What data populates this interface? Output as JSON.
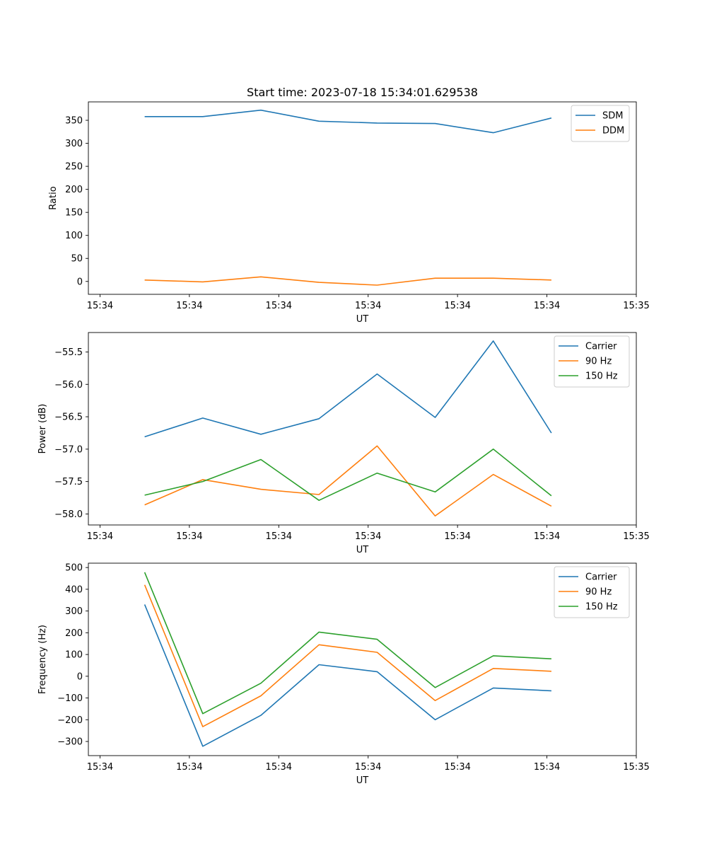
{
  "colors": {
    "blue": "#1f77b4",
    "orange": "#ff7f0e",
    "green": "#2ca02c"
  },
  "chart_data": [
    {
      "type": "line",
      "title": "Start time: 2023-07-18 15:34:01.629538",
      "xlabel": "UT",
      "ylabel": "Ratio",
      "x": [
        0.5,
        1.15,
        1.8,
        2.45,
        3.1,
        3.75,
        4.4,
        5.05
      ],
      "xlim": [
        -0.13,
        6.0
      ],
      "x_ticks": [
        0,
        1,
        2,
        3,
        4,
        5,
        6
      ],
      "x_tick_labels": [
        "15:34",
        "15:34",
        "15:34",
        "15:34",
        "15:34",
        "15:34",
        "15:35"
      ],
      "ylim": [
        -28,
        390
      ],
      "y_ticks": [
        0,
        50,
        100,
        150,
        200,
        250,
        300,
        350
      ],
      "y_tick_labels": [
        "0",
        "50",
        "100",
        "150",
        "200",
        "250",
        "300",
        "350"
      ],
      "legend_position": "top-right",
      "series": [
        {
          "name": "SDM",
          "color": "#1f77b4",
          "values": [
            358,
            358,
            372,
            348,
            344,
            343,
            323,
            355
          ]
        },
        {
          "name": "DDM",
          "color": "#ff7f0e",
          "values": [
            3,
            -1,
            10,
            -2,
            -8,
            7,
            7,
            3
          ]
        }
      ]
    },
    {
      "type": "line",
      "title": "",
      "xlabel": "UT",
      "ylabel": "Power (dB)",
      "x": [
        0.5,
        1.15,
        1.8,
        2.45,
        3.1,
        3.75,
        4.4,
        5.05
      ],
      "xlim": [
        -0.13,
        6.0
      ],
      "x_ticks": [
        0,
        1,
        2,
        3,
        4,
        5,
        6
      ],
      "x_tick_labels": [
        "15:34",
        "15:34",
        "15:34",
        "15:34",
        "15:34",
        "15:34",
        "15:35"
      ],
      "ylim": [
        -58.17,
        -55.2
      ],
      "y_ticks": [
        -58.0,
        -57.5,
        -57.0,
        -56.5,
        -56.0,
        -55.5
      ],
      "y_tick_labels": [
        "−58.0",
        "−57.5",
        "−57.0",
        "−56.5",
        "−56.0",
        "−55.5"
      ],
      "legend_position": "top-right",
      "series": [
        {
          "name": "Carrier",
          "color": "#1f77b4",
          "values": [
            -56.81,
            -56.52,
            -56.77,
            -56.53,
            -55.84,
            -56.51,
            -55.33,
            -56.75
          ]
        },
        {
          "name": "90 Hz",
          "color": "#ff7f0e",
          "values": [
            -57.86,
            -57.47,
            -57.62,
            -57.7,
            -56.95,
            -58.03,
            -57.39,
            -57.88
          ]
        },
        {
          "name": "150 Hz",
          "color": "#2ca02c",
          "values": [
            -57.71,
            -57.5,
            -57.16,
            -57.79,
            -57.37,
            -57.66,
            -57.0,
            -57.72
          ]
        }
      ]
    },
    {
      "type": "line",
      "title": "",
      "xlabel": "UT",
      "ylabel": "Frequency (Hz)",
      "x": [
        0.5,
        1.15,
        1.8,
        2.45,
        3.1,
        3.75,
        4.4,
        5.05
      ],
      "xlim": [
        -0.13,
        6.0
      ],
      "x_ticks": [
        0,
        1,
        2,
        3,
        4,
        5,
        6
      ],
      "x_tick_labels": [
        "15:34",
        "15:34",
        "15:34",
        "15:34",
        "15:34",
        "15:34",
        "15:35"
      ],
      "ylim": [
        -365,
        520
      ],
      "y_ticks": [
        -300,
        -200,
        -100,
        0,
        100,
        200,
        300,
        400,
        500
      ],
      "y_tick_labels": [
        "−300",
        "−200",
        "−100",
        "0",
        "100",
        "200",
        "300",
        "400",
        "500"
      ],
      "legend_position": "top-right",
      "series": [
        {
          "name": "Carrier",
          "color": "#1f77b4",
          "values": [
            330,
            -322,
            -180,
            53,
            21,
            -200,
            -54,
            -67
          ]
        },
        {
          "name": "90 Hz",
          "color": "#ff7f0e",
          "values": [
            420,
            -232,
            -90,
            145,
            110,
            -112,
            36,
            23
          ]
        },
        {
          "name": "150 Hz",
          "color": "#2ca02c",
          "values": [
            478,
            -172,
            -32,
            203,
            170,
            -52,
            94,
            80
          ]
        }
      ]
    }
  ]
}
